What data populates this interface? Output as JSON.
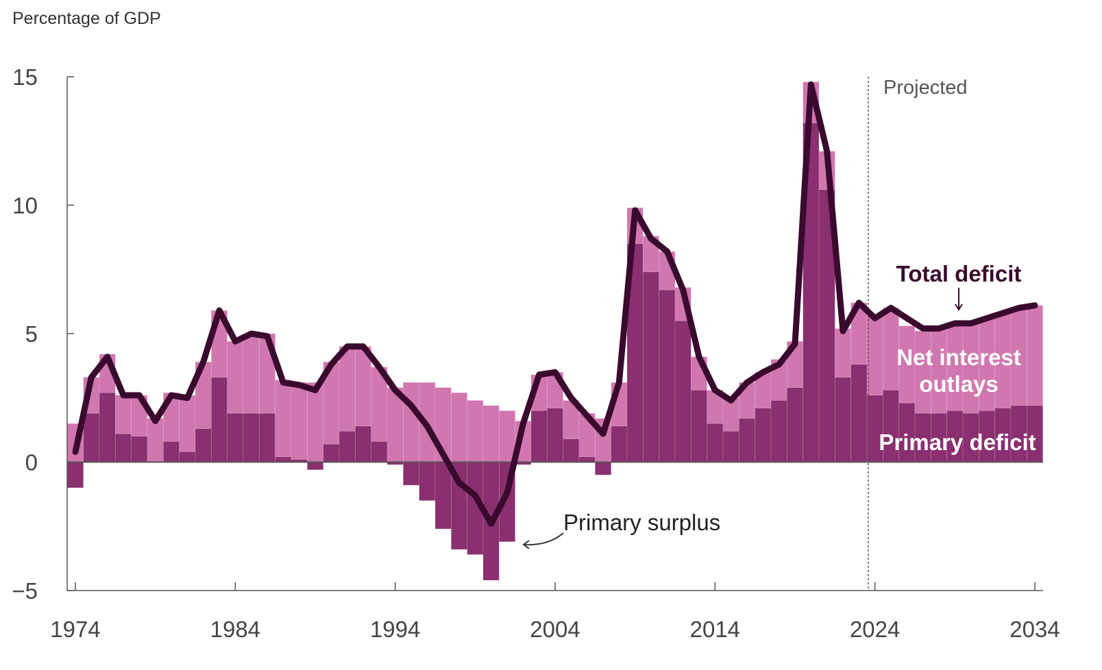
{
  "chart_data": {
    "type": "bar",
    "ylabel": "Percentage of GDP",
    "xlabel": "",
    "xlim": [
      1974,
      2034
    ],
    "ylim": [
      -5,
      15
    ],
    "yticks": [
      15,
      10,
      5,
      0,
      -5
    ],
    "xticks": [
      1974,
      1984,
      1994,
      2004,
      2014,
      2024,
      2034
    ],
    "projection_start": 2024,
    "projected_label": "Projected",
    "colors": {
      "primary": "#8a2f70",
      "net_interest": "#d177b0",
      "total_line": "#3a0a2e",
      "axis": "#555555"
    },
    "years": [
      1974,
      1975,
      1976,
      1977,
      1978,
      1979,
      1980,
      1981,
      1982,
      1983,
      1984,
      1985,
      1986,
      1987,
      1988,
      1989,
      1990,
      1991,
      1992,
      1993,
      1994,
      1995,
      1996,
      1997,
      1998,
      1999,
      2000,
      2001,
      2002,
      2003,
      2004,
      2005,
      2006,
      2007,
      2008,
      2009,
      2010,
      2011,
      2012,
      2013,
      2014,
      2015,
      2016,
      2017,
      2018,
      2019,
      2020,
      2021,
      2022,
      2023,
      2024,
      2025,
      2026,
      2027,
      2028,
      2029,
      2030,
      2031,
      2032,
      2033,
      2034
    ],
    "series": [
      {
        "name": "Primary deficit",
        "values": [
          -1.0,
          1.9,
          2.7,
          1.1,
          1.0,
          0.0,
          0.8,
          0.4,
          1.3,
          3.3,
          1.9,
          1.9,
          1.9,
          0.2,
          0.1,
          -0.3,
          0.7,
          1.2,
          1.4,
          0.8,
          -0.1,
          -0.9,
          -1.5,
          -2.6,
          -3.4,
          -3.6,
          -4.6,
          -3.1,
          -0.1,
          2.0,
          2.1,
          0.9,
          0.2,
          -0.5,
          1.4,
          8.5,
          7.4,
          6.7,
          5.5,
          2.8,
          1.5,
          1.2,
          1.7,
          2.1,
          2.4,
          2.9,
          13.2,
          10.6,
          3.3,
          3.8,
          2.6,
          2.8,
          2.3,
          1.9,
          1.9,
          2.0,
          1.9,
          2.0,
          2.1,
          2.2,
          2.2
        ]
      },
      {
        "name": "Net interest outlays",
        "values": [
          1.5,
          1.4,
          1.5,
          1.5,
          1.6,
          1.7,
          1.9,
          2.2,
          2.6,
          2.6,
          2.8,
          3.0,
          3.1,
          3.0,
          3.0,
          3.1,
          3.2,
          3.3,
          3.1,
          2.9,
          2.9,
          3.1,
          3.1,
          2.9,
          2.7,
          2.4,
          2.2,
          2.0,
          1.6,
          1.4,
          1.4,
          1.5,
          1.7,
          1.7,
          1.7,
          1.4,
          1.4,
          1.5,
          1.3,
          1.3,
          1.3,
          1.3,
          1.4,
          1.4,
          1.6,
          1.8,
          1.6,
          1.5,
          1.9,
          2.4,
          3.1,
          3.2,
          3.0,
          3.2,
          3.3,
          3.4,
          3.5,
          3.6,
          3.7,
          3.8,
          3.9
        ]
      },
      {
        "name": "Total deficit",
        "values": [
          0.4,
          3.3,
          4.1,
          2.6,
          2.6,
          1.6,
          2.6,
          2.5,
          3.9,
          5.9,
          4.7,
          5.0,
          4.9,
          3.1,
          3.0,
          2.8,
          3.8,
          4.5,
          4.5,
          3.7,
          2.8,
          2.2,
          1.4,
          0.3,
          -0.8,
          -1.3,
          -2.4,
          -1.2,
          1.5,
          3.4,
          3.5,
          2.5,
          1.8,
          1.1,
          3.1,
          9.8,
          8.7,
          8.2,
          6.7,
          4.1,
          2.8,
          2.4,
          3.1,
          3.5,
          3.8,
          4.6,
          14.7,
          12.1,
          5.1,
          6.2,
          5.6,
          6.0,
          5.6,
          5.2,
          5.2,
          5.4,
          5.4,
          5.6,
          5.8,
          6.0,
          6.1
        ]
      }
    ],
    "annotations": {
      "total_deficit": "Total deficit",
      "net_interest_line1": "Net interest",
      "net_interest_line2": "outlays",
      "primary_deficit": "Primary deficit",
      "primary_surplus": "Primary surplus"
    }
  }
}
